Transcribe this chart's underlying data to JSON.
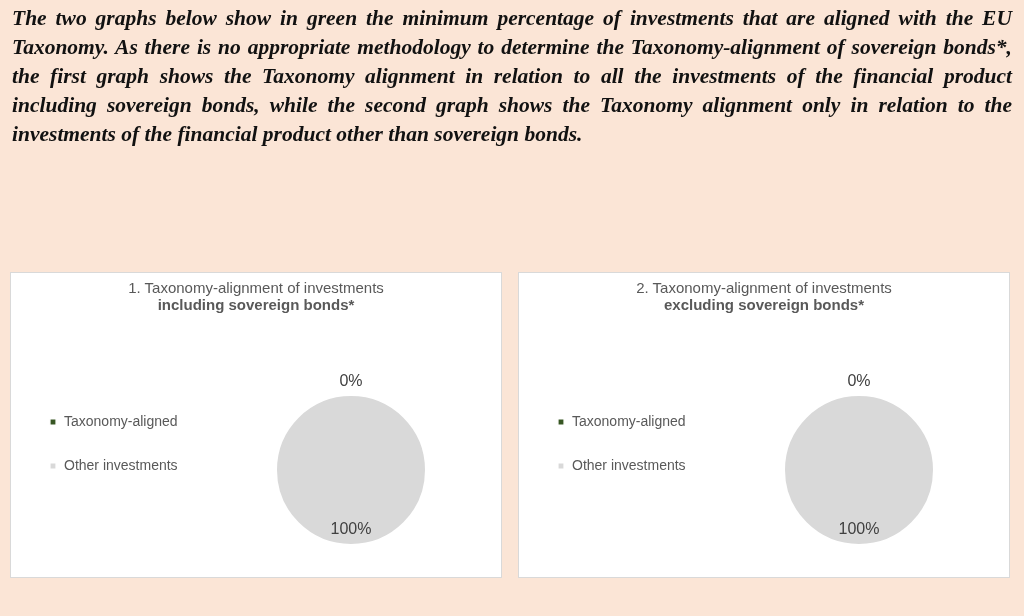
{
  "chart_data": [
    {
      "type": "other",
      "title": "The two graphs below show in green the minimum percentage of investments that are aligned with the EU Taxonomy. As there is no appropriate methodology to determine the Taxonomy-alignment of sovereign bonds*, the first graph shows the Taxonomy alignment in relation to all the investments of the financial product including sovereign bonds, while the second graph shows the Taxonomy alignment only in relation to the investments of the financial product other than sovereign bonds."
    },
    {
      "type": "pie",
      "title": "1. Taxonomy-alignment of investments",
      "subtitle": "including sovereign bonds*",
      "categories": [
        "Taxonomy-aligned",
        "Other investments"
      ],
      "values": [
        0,
        100
      ],
      "colors": [
        "#375623",
        "#d9d9d9"
      ],
      "value_labels": [
        "0%",
        "100%"
      ],
      "legend": "left"
    },
    {
      "type": "pie",
      "title": "2. Taxonomy-alignment of investments",
      "subtitle": "excluding sovereign bonds*",
      "categories": [
        "Taxonomy-aligned",
        "Other investments"
      ],
      "values": [
        0,
        100
      ],
      "colors": [
        "#375623",
        "#d9d9d9"
      ],
      "value_labels": [
        "0%",
        "100%"
      ],
      "legend": "left"
    }
  ]
}
